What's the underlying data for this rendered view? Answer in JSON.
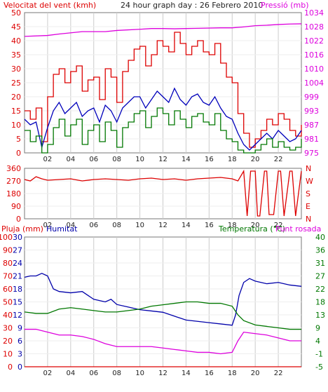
{
  "title": "24 hour graph day : 26 Febrero 2010",
  "colors": {
    "wind": "#dd0000",
    "wind_dir": "#dd0000",
    "wind_avg": "#0000bb",
    "green": "#007700",
    "pressure": "#dd00dd",
    "humidity": "#0000aa",
    "temperature": "#007700",
    "dewpoint": "#dd00dd",
    "rain": "#dd0000",
    "grid": "#cccccc"
  },
  "x_ticks": [
    "02",
    "04",
    "06",
    "08",
    "10",
    "12",
    "14",
    "16",
    "18",
    "20",
    "22"
  ],
  "chart_data": [
    {
      "type": "line",
      "title": "24 hour graph day : 26 Febrero 2010",
      "left_label": "Velocitat del vent (kmh)",
      "right_label": "Pressió (mb)",
      "left_ticks": [
        "50",
        "45",
        "40",
        "35",
        "30",
        "25",
        "20",
        "15",
        "10",
        "5",
        "0"
      ],
      "right_ticks": [
        "1034",
        "1028",
        "1022",
        "1016",
        "1010",
        "1004",
        "999",
        "993",
        "987",
        "981",
        "975"
      ],
      "ylim_left": [
        0,
        50
      ],
      "ylim_right": [
        975,
        1034
      ],
      "xlim_hours": [
        0,
        24
      ],
      "series": [
        {
          "key": "gust",
          "color_key": "wind",
          "axis": "left",
          "step": true,
          "x": [
            0,
            0.5,
            1,
            1.5,
            2,
            2.5,
            3,
            3.5,
            4,
            4.5,
            5,
            5.5,
            6,
            6.5,
            7,
            7.5,
            8,
            8.5,
            9,
            9.5,
            10,
            10.5,
            11,
            11.5,
            12,
            12.5,
            13,
            13.5,
            14,
            14.5,
            15,
            15.5,
            16,
            16.5,
            17,
            17.5,
            18,
            18.5,
            19,
            19.5,
            20,
            20.5,
            21,
            21.5,
            22,
            22.5,
            23,
            23.5,
            24
          ],
          "y": [
            15,
            12,
            16,
            4,
            20,
            28,
            30,
            25,
            29,
            31,
            22,
            26,
            27,
            19,
            30,
            27,
            18,
            29,
            33,
            37,
            38,
            31,
            35,
            40,
            38,
            36,
            43,
            39,
            35,
            38,
            40,
            36,
            35,
            39,
            32,
            27,
            25,
            14,
            7,
            2,
            5,
            8,
            12,
            10,
            14,
            12,
            8,
            6,
            10
          ]
        },
        {
          "key": "avg",
          "color_key": "wind_avg",
          "axis": "left",
          "step": false,
          "x": [
            0,
            0.5,
            1,
            1.5,
            2,
            2.5,
            3,
            3.5,
            4,
            4.5,
            5,
            5.5,
            6,
            6.5,
            7,
            7.5,
            8,
            8.5,
            9,
            9.5,
            10,
            10.5,
            11,
            11.5,
            12,
            12.5,
            13,
            13.5,
            14,
            14.5,
            15,
            15.5,
            16,
            16.5,
            17,
            17.5,
            18,
            18.5,
            19,
            19.5,
            20,
            20.5,
            21,
            21.5,
            22,
            22.5,
            23,
            23.5,
            24
          ],
          "y": [
            12,
            10,
            11,
            2,
            9,
            15,
            18,
            14,
            16,
            18,
            13,
            15,
            16,
            11,
            17,
            15,
            11,
            16,
            18,
            20,
            20,
            16,
            19,
            22,
            20,
            18,
            23,
            19,
            17,
            20,
            21,
            18,
            17,
            20,
            16,
            13,
            12,
            7,
            3,
            1,
            3,
            5,
            7,
            5,
            8,
            6,
            4,
            5,
            8
          ]
        },
        {
          "key": "wind_low",
          "color_key": "green",
          "axis": "left",
          "step": true,
          "x": [
            0,
            0.5,
            1,
            1.5,
            2,
            2.5,
            3,
            3.5,
            4,
            4.5,
            5,
            5.5,
            6,
            6.5,
            7,
            7.5,
            8,
            8.5,
            9,
            9.5,
            10,
            10.5,
            11,
            11.5,
            12,
            12.5,
            13,
            13.5,
            14,
            14.5,
            15,
            15.5,
            16,
            16.5,
            17,
            17.5,
            18,
            18.5,
            19,
            19.5,
            20,
            20.5,
            21,
            21.5,
            22,
            22.5,
            23,
            23.5,
            24
          ],
          "y": [
            8,
            4,
            6,
            0,
            3,
            9,
            12,
            6,
            10,
            12,
            3,
            8,
            10,
            4,
            11,
            8,
            2,
            9,
            11,
            14,
            15,
            9,
            13,
            16,
            14,
            10,
            15,
            12,
            9,
            13,
            14,
            11,
            10,
            14,
            8,
            5,
            4,
            1,
            0,
            0,
            1,
            3,
            5,
            2,
            4,
            2,
            1,
            2,
            5
          ]
        },
        {
          "key": "pressure",
          "color_key": "pressure",
          "axis": "right",
          "step": false,
          "x": [
            0,
            2,
            3,
            5,
            7,
            8,
            10,
            11,
            12,
            13,
            14,
            15,
            17,
            18,
            19,
            20,
            21,
            22,
            23,
            24
          ],
          "y": [
            1024,
            1024.4,
            1025,
            1026,
            1026,
            1026.5,
            1027,
            1027.3,
            1027.3,
            1027.2,
            1027.3,
            1027.4,
            1027.6,
            1027.6,
            1028,
            1028.5,
            1028.7,
            1029,
            1029.2,
            1029.3
          ]
        }
      ]
    },
    {
      "type": "line",
      "title": "",
      "left_ticks": [
        "360",
        "270",
        "180",
        "90",
        "0"
      ],
      "right_ticks": [
        "N",
        "W",
        "S",
        "E",
        "N"
      ],
      "ylim": [
        0,
        360
      ],
      "xlim_hours": [
        0,
        24
      ],
      "series": [
        {
          "key": "direction",
          "color_key": "wind_dir",
          "step": false,
          "x": [
            0,
            0.5,
            1,
            1.5,
            2,
            3,
            4,
            5,
            6,
            7,
            8,
            9,
            10,
            11,
            12,
            13,
            14,
            15,
            16,
            17,
            18,
            18.5,
            19,
            19.3,
            19.6,
            20,
            20.2,
            20.4,
            20.8,
            21,
            21.2,
            21.6,
            22,
            22.2,
            22.5,
            23,
            23.2,
            23.5,
            24
          ],
          "y": [
            280,
            270,
            300,
            285,
            275,
            280,
            285,
            270,
            280,
            285,
            280,
            275,
            285,
            290,
            280,
            285,
            275,
            285,
            290,
            295,
            285,
            270,
            340,
            20,
            340,
            340,
            20,
            20,
            340,
            340,
            30,
            30,
            340,
            340,
            20,
            340,
            340,
            20,
            340
          ]
        }
      ]
    },
    {
      "type": "line",
      "title": "",
      "left_label": "Pluja (mm)",
      "mid_label": "Humitat",
      "right_label_1": "Temperatura (°C)",
      "right_label_2": "Punt rosada",
      "left_ticks": [
        "100",
        "90",
        "80",
        "70",
        "60",
        "50",
        "40",
        "30",
        "20",
        "10",
        "0"
      ],
      "left_ticks_2": [
        "30",
        "27",
        "24",
        "21",
        "18",
        "15",
        "12",
        "9",
        "6",
        "3",
        "0"
      ],
      "right_ticks": [
        "40",
        "36",
        "31",
        "27",
        "22",
        "18",
        "13",
        "9",
        "4",
        "-1",
        "-5"
      ],
      "ylim_left": [
        0,
        100
      ],
      "ylim_right": [
        -5,
        40
      ],
      "xlim_hours": [
        0,
        24
      ],
      "series": [
        {
          "key": "humidity",
          "color_key": "humidity",
          "axis": "left",
          "x": [
            0,
            0.5,
            1,
            1.5,
            2,
            2.5,
            3,
            4,
            5,
            6,
            7,
            7.5,
            8,
            9,
            10,
            11,
            12,
            13,
            14,
            15,
            16,
            17,
            18,
            18.3,
            18.6,
            19,
            19.5,
            20,
            21,
            22,
            23,
            24
          ],
          "y": [
            69,
            70,
            70,
            72,
            70,
            60,
            58,
            57,
            58,
            52,
            50,
            52,
            48,
            46,
            44,
            43,
            42,
            39,
            36,
            35,
            34,
            33,
            32,
            40,
            55,
            65,
            68,
            66,
            64,
            65,
            63,
            62
          ]
        },
        {
          "key": "temperature",
          "color_key": "temperature",
          "axis": "right",
          "x": [
            0,
            1,
            2,
            3,
            4,
            5,
            6,
            7,
            8,
            9,
            10,
            11,
            12,
            13,
            14,
            15,
            16,
            17,
            18,
            18.5,
            19,
            20,
            21,
            22,
            23,
            24
          ],
          "y": [
            14,
            13.5,
            13.5,
            15,
            15.5,
            15,
            14.5,
            14,
            14,
            14.5,
            15,
            16,
            16.5,
            17,
            17.5,
            17.5,
            17,
            17,
            16,
            13,
            11,
            9.5,
            9,
            8.5,
            8,
            8
          ]
        },
        {
          "key": "dewpoint",
          "color_key": "dewpoint",
          "axis": "right",
          "x": [
            0,
            1,
            2,
            3,
            4,
            5,
            6,
            7,
            8,
            9,
            10,
            11,
            12,
            13,
            14,
            15,
            16,
            17,
            18,
            18.5,
            19,
            20,
            21,
            22,
            23,
            24
          ],
          "y": [
            8,
            8,
            7,
            6,
            6,
            5.5,
            4.5,
            3,
            2,
            2,
            2,
            2,
            1.5,
            1,
            0.5,
            0,
            0,
            -0.5,
            0,
            4,
            7,
            6.5,
            6,
            5,
            4,
            4
          ]
        },
        {
          "key": "rain",
          "color_key": "rain",
          "axis": "left",
          "x": [
            0,
            24
          ],
          "y": [
            0,
            0
          ]
        }
      ]
    }
  ]
}
